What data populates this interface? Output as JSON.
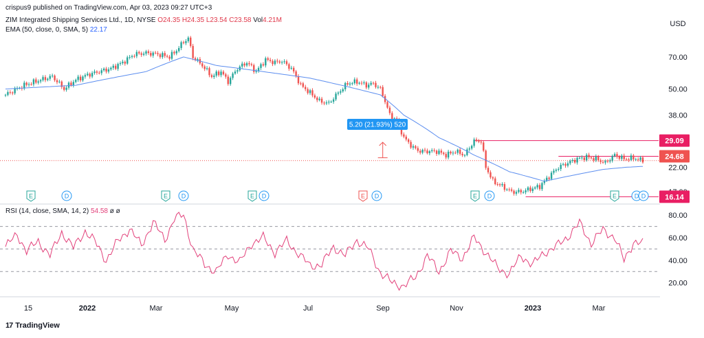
{
  "header": {
    "publisher": "crispus9 published on TradingView.com, Apr 03, 2023 09:27 UTC+3",
    "symbol": "ZIM Integrated Shipping Services Ltd., 1D, NYSE",
    "open": "O24.35",
    "high": "H24.35",
    "low": "L23.54",
    "close": "C23.58",
    "volume_label": "Vol",
    "volume": "4.21M",
    "ema_label": "EMA (50, close, 0, SMA, 5)",
    "ema_value": "22.17",
    "rsi_label": "RSI (14, close, SMA, 14, 2)",
    "rsi_value": "54.58",
    "rsi_extra": "ø  ø"
  },
  "currency": "USD",
  "logo_text": "TradingView",
  "measure_label": "5.20 (21.93%) 520",
  "colors": {
    "up": "#26a69a",
    "down": "#ef5350",
    "ema": "#5b8def",
    "rsi": "#e2407a",
    "level": "#e91e63",
    "label_blue": "#2196f3"
  },
  "chart_data": [
    {
      "type": "candlestick",
      "scale": "log",
      "title": "ZIM Integrated Shipping Services Ltd., 1D, NYSE",
      "x_ticks": [
        "15",
        "2022",
        "Mar",
        "May",
        "Jul",
        "Sep",
        "Nov",
        "2023",
        "Mar"
      ],
      "y_ticks": [
        "70.00",
        "50.00",
        "38.00",
        "22.00",
        "17.00"
      ],
      "ylim": [
        15.5,
        90
      ],
      "price_labels": [
        "29.09",
        "24.68",
        "16.14"
      ],
      "horizontal_levels": [
        29.09,
        24.68,
        16.14
      ],
      "current_price": 23.58,
      "events": [
        "E",
        "D",
        "E",
        "D",
        "E",
        "D",
        "E",
        "D",
        "E",
        "D",
        "E",
        "D",
        "D"
      ],
      "series": [
        {
          "name": "ZIM",
          "anchors": [
            [
              0,
              47
            ],
            [
              8,
              52
            ],
            [
              15,
              55
            ],
            [
              20,
              57
            ],
            [
              25,
              50
            ],
            [
              30,
              55
            ],
            [
              35,
              58
            ],
            [
              40,
              60
            ],
            [
              45,
              62
            ],
            [
              50,
              66
            ],
            [
              55,
              72
            ],
            [
              60,
              73
            ],
            [
              65,
              72
            ],
            [
              70,
              70
            ],
            [
              73,
              75
            ],
            [
              76,
              82
            ],
            [
              78,
              85
            ],
            [
              80,
              70
            ],
            [
              84,
              64
            ],
            [
              88,
              57
            ],
            [
              92,
              60
            ],
            [
              95,
              54
            ],
            [
              99,
              62
            ],
            [
              103,
              66
            ],
            [
              107,
              60
            ],
            [
              111,
              68
            ],
            [
              115,
              66
            ],
            [
              118,
              67
            ],
            [
              122,
              62
            ],
            [
              126,
              52
            ],
            [
              130,
              48
            ],
            [
              134,
              44
            ],
            [
              138,
              43
            ],
            [
              142,
              48
            ],
            [
              146,
              53
            ],
            [
              150,
              54
            ],
            [
              154,
              52
            ],
            [
              157,
              53
            ],
            [
              160,
              50
            ],
            [
              162,
              44
            ],
            [
              164,
              38
            ],
            [
              167,
              36
            ],
            [
              170,
              30
            ],
            [
              174,
              27
            ],
            [
              177,
              26
            ],
            [
              180,
              26
            ],
            [
              184,
              26
            ],
            [
              188,
              25
            ],
            [
              192,
              26
            ],
            [
              196,
              25
            ],
            [
              200,
              29
            ],
            [
              203,
              29
            ],
            [
              205,
              22
            ],
            [
              208,
              19
            ],
            [
              212,
              18
            ],
            [
              216,
              17
            ],
            [
              220,
              17
            ],
            [
              224,
              17.5
            ],
            [
              228,
              18
            ],
            [
              232,
              20
            ],
            [
              236,
              22
            ],
            [
              240,
              23
            ],
            [
              244,
              24
            ],
            [
              248,
              24.5
            ],
            [
              252,
              24
            ],
            [
              256,
              23
            ],
            [
              260,
              25
            ],
            [
              264,
              24
            ],
            [
              268,
              24.2
            ],
            [
              272,
              23.6
            ]
          ]
        },
        {
          "name": "EMA (50, close, 0, SMA, 5)",
          "anchors": [
            [
              0,
              50
            ],
            [
              30,
              52
            ],
            [
              60,
              60
            ],
            [
              76,
              70
            ],
            [
              90,
              64
            ],
            [
              110,
              60
            ],
            [
              130,
              56
            ],
            [
              150,
              50
            ],
            [
              160,
              47
            ],
            [
              170,
              38
            ],
            [
              185,
              30
            ],
            [
              200,
              25
            ],
            [
              215,
              21
            ],
            [
              230,
              19
            ],
            [
              240,
              20
            ],
            [
              255,
              21.5
            ],
            [
              265,
              22
            ],
            [
              272,
              22.2
            ]
          ]
        }
      ]
    },
    {
      "type": "line",
      "title": "RSI (14, close, SMA, 14, 2)",
      "y_ticks": [
        "80.00",
        "60.00",
        "40.00",
        "20.00"
      ],
      "ylim": [
        10,
        85
      ],
      "bands": [
        70,
        50,
        30
      ],
      "series": [
        {
          "name": "RSI",
          "anchors": [
            [
              0,
              52
            ],
            [
              5,
              63
            ],
            [
              9,
              48
            ],
            [
              14,
              57
            ],
            [
              19,
              44
            ],
            [
              24,
              65
            ],
            [
              29,
              51
            ],
            [
              34,
              66
            ],
            [
              38,
              57
            ],
            [
              43,
              40
            ],
            [
              48,
              57
            ],
            [
              53,
              68
            ],
            [
              58,
              53
            ],
            [
              63,
              74
            ],
            [
              68,
              58
            ],
            [
              72,
              77
            ],
            [
              76,
              80
            ],
            [
              80,
              50
            ],
            [
              85,
              36
            ],
            [
              90,
              30
            ],
            [
              95,
              45
            ],
            [
              100,
              38
            ],
            [
              105,
              55
            ],
            [
              110,
              60
            ],
            [
              115,
              47
            ],
            [
              120,
              57
            ],
            [
              125,
              46
            ],
            [
              130,
              35
            ],
            [
              135,
              36
            ],
            [
              140,
              52
            ],
            [
              145,
              44
            ],
            [
              150,
              58
            ],
            [
              155,
              50
            ],
            [
              160,
              29
            ],
            [
              165,
              20
            ],
            [
              170,
              17
            ],
            [
              175,
              25
            ],
            [
              180,
              44
            ],
            [
              185,
              30
            ],
            [
              190,
              48
            ],
            [
              195,
              42
            ],
            [
              200,
              60
            ],
            [
              205,
              47
            ],
            [
              210,
              33
            ],
            [
              215,
              28
            ],
            [
              220,
              44
            ],
            [
              225,
              36
            ],
            [
              230,
              47
            ],
            [
              235,
              52
            ],
            [
              240,
              61
            ],
            [
              245,
              73
            ],
            [
              250,
              55
            ],
            [
              255,
              67
            ],
            [
              260,
              60
            ],
            [
              264,
              40
            ],
            [
              268,
              56
            ],
            [
              272,
              54.58
            ]
          ]
        }
      ]
    }
  ]
}
